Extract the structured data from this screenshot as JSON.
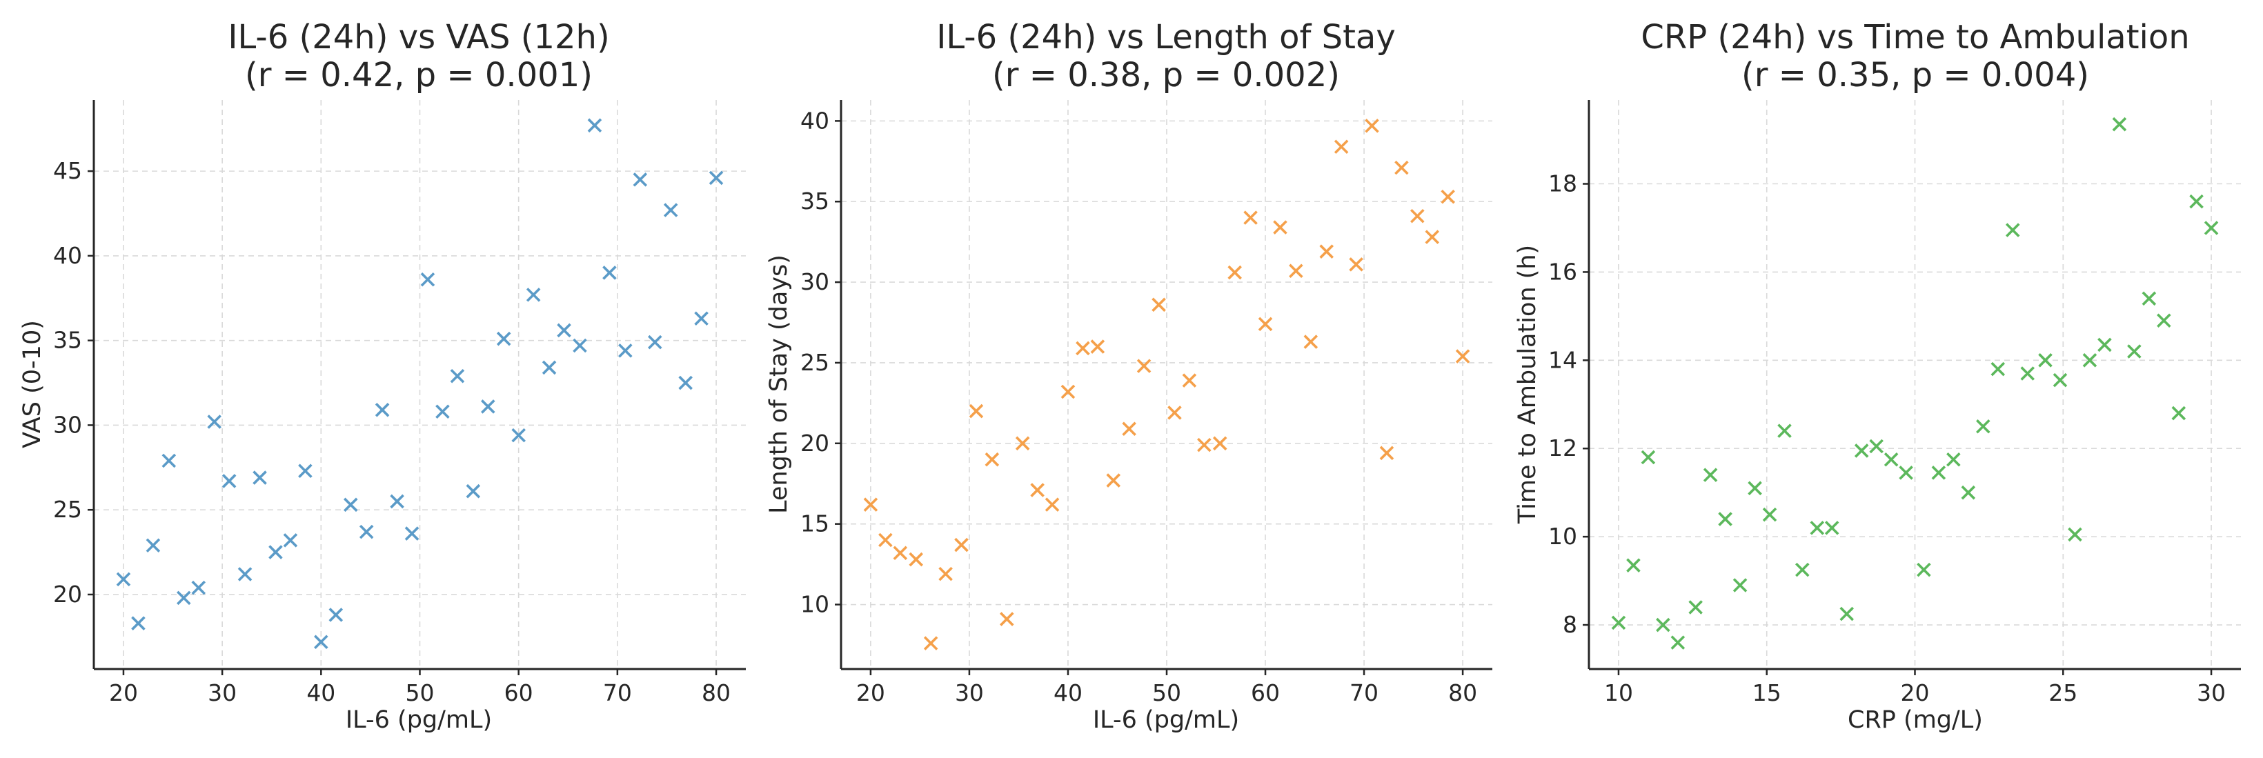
{
  "chart_data": [
    {
      "type": "scatter",
      "title_line1": "IL-6 (24h) vs VAS (12h)",
      "title_line2": "(r = 0.42, p = 0.001)",
      "xlabel": "IL-6 (pg/mL)",
      "ylabel": "VAS (0-10)",
      "xlim": [
        17,
        83
      ],
      "ylim": [
        15.6,
        49.2
      ],
      "xticks": [
        20,
        30,
        40,
        50,
        60,
        70,
        80
      ],
      "yticks": [
        20,
        25,
        30,
        35,
        40,
        45
      ],
      "color": "#5b9bc8",
      "marker": "x",
      "grid": true,
      "points": [
        [
          20.0,
          20.9
        ],
        [
          21.5,
          18.3
        ],
        [
          23.0,
          22.9
        ],
        [
          24.6,
          27.9
        ],
        [
          26.1,
          19.8
        ],
        [
          27.6,
          20.4
        ],
        [
          29.2,
          30.2
        ],
        [
          30.7,
          26.7
        ],
        [
          32.3,
          21.2
        ],
        [
          33.8,
          26.9
        ],
        [
          35.4,
          22.5
        ],
        [
          36.9,
          23.2
        ],
        [
          38.4,
          27.3
        ],
        [
          40.0,
          17.2
        ],
        [
          41.5,
          18.8
        ],
        [
          43.0,
          25.3
        ],
        [
          44.6,
          23.7
        ],
        [
          46.2,
          30.9
        ],
        [
          47.7,
          25.5
        ],
        [
          49.2,
          23.6
        ],
        [
          50.8,
          38.6
        ],
        [
          52.3,
          30.8
        ],
        [
          53.8,
          32.9
        ],
        [
          55.4,
          26.1
        ],
        [
          56.9,
          31.1
        ],
        [
          58.5,
          35.1
        ],
        [
          60.0,
          29.4
        ],
        [
          61.5,
          37.7
        ],
        [
          63.1,
          33.4
        ],
        [
          64.6,
          35.6
        ],
        [
          66.2,
          34.7
        ],
        [
          67.7,
          47.7
        ],
        [
          69.2,
          39.0
        ],
        [
          70.8,
          34.4
        ],
        [
          72.3,
          44.5
        ],
        [
          73.8,
          34.9
        ],
        [
          75.4,
          42.7
        ],
        [
          76.9,
          32.5
        ],
        [
          78.5,
          36.3
        ],
        [
          80.0,
          44.6
        ]
      ]
    },
    {
      "type": "scatter",
      "title_line1": "IL-6 (24h) vs Length of Stay",
      "title_line2": "(r = 0.38, p = 0.002)",
      "xlabel": "IL-6 (pg/mL)",
      "ylabel": "Length of Stay (days)",
      "xlim": [
        17,
        83
      ],
      "ylim": [
        6.0,
        41.3
      ],
      "xticks": [
        20,
        30,
        40,
        50,
        60,
        70,
        80
      ],
      "yticks": [
        10,
        15,
        20,
        25,
        30,
        35,
        40
      ],
      "color": "#f5a04a",
      "marker": "x",
      "grid": true,
      "points": [
        [
          20.0,
          16.2
        ],
        [
          21.5,
          14.0
        ],
        [
          23.0,
          13.2
        ],
        [
          24.6,
          12.8
        ],
        [
          26.1,
          7.6
        ],
        [
          27.6,
          11.9
        ],
        [
          29.2,
          13.7
        ],
        [
          30.7,
          22.0
        ],
        [
          32.3,
          19.0
        ],
        [
          33.8,
          9.1
        ],
        [
          35.4,
          20.0
        ],
        [
          36.9,
          17.1
        ],
        [
          38.4,
          16.2
        ],
        [
          40.0,
          23.2
        ],
        [
          41.5,
          25.9
        ],
        [
          43.0,
          26.0
        ],
        [
          44.6,
          17.7
        ],
        [
          46.2,
          20.9
        ],
        [
          47.7,
          24.8
        ],
        [
          49.2,
          28.6
        ],
        [
          50.8,
          21.9
        ],
        [
          52.3,
          23.9
        ],
        [
          53.8,
          19.9
        ],
        [
          55.4,
          20.0
        ],
        [
          56.9,
          30.6
        ],
        [
          58.5,
          34.0
        ],
        [
          60.0,
          27.4
        ],
        [
          61.5,
          33.4
        ],
        [
          63.1,
          30.7
        ],
        [
          64.6,
          26.3
        ],
        [
          66.2,
          31.9
        ],
        [
          67.7,
          38.4
        ],
        [
          69.2,
          31.1
        ],
        [
          70.8,
          39.7
        ],
        [
          72.3,
          19.4
        ],
        [
          73.8,
          37.1
        ],
        [
          75.4,
          34.1
        ],
        [
          76.9,
          32.8
        ],
        [
          78.5,
          35.3
        ],
        [
          80.0,
          25.4
        ]
      ]
    },
    {
      "type": "scatter",
      "title_line1": "CRP (24h) vs Time to Ambulation",
      "title_line2": "(r = 0.35, p = 0.004)",
      "xlabel": "CRP (mg/L)",
      "ylabel": "Time to Ambulation (h)",
      "xlim": [
        9.0,
        31.0
      ],
      "ylim": [
        7.0,
        19.9
      ],
      "xticks": [
        10,
        15,
        20,
        25,
        30
      ],
      "yticks": [
        8,
        10,
        12,
        14,
        16,
        18
      ],
      "color": "#5cb85c",
      "marker": "x",
      "grid": true,
      "points": [
        [
          10.0,
          8.05
        ],
        [
          10.5,
          9.35
        ],
        [
          11.0,
          11.8
        ],
        [
          11.5,
          8.0
        ],
        [
          12.0,
          7.6
        ],
        [
          12.6,
          8.4
        ],
        [
          13.1,
          11.4
        ],
        [
          13.6,
          10.4
        ],
        [
          14.1,
          8.9
        ],
        [
          14.6,
          11.1
        ],
        [
          15.1,
          10.5
        ],
        [
          15.6,
          12.4
        ],
        [
          16.2,
          9.25
        ],
        [
          16.7,
          10.2
        ],
        [
          17.2,
          10.2
        ],
        [
          17.7,
          8.25
        ],
        [
          18.2,
          11.95
        ],
        [
          18.7,
          12.05
        ],
        [
          19.2,
          11.75
        ],
        [
          19.7,
          11.45
        ],
        [
          20.3,
          9.25
        ],
        [
          20.8,
          11.45
        ],
        [
          21.3,
          11.75
        ],
        [
          21.8,
          11.0
        ],
        [
          22.3,
          12.5
        ],
        [
          22.8,
          13.8
        ],
        [
          23.3,
          16.95
        ],
        [
          23.8,
          13.7
        ],
        [
          24.4,
          14.0
        ],
        [
          24.9,
          13.55
        ],
        [
          25.4,
          10.05
        ],
        [
          25.9,
          14.0
        ],
        [
          26.4,
          14.35
        ],
        [
          26.9,
          19.35
        ],
        [
          27.4,
          14.2
        ],
        [
          27.9,
          15.4
        ],
        [
          28.4,
          14.9
        ],
        [
          28.9,
          12.8
        ],
        [
          29.5,
          17.6
        ],
        [
          30.0,
          17.0
        ]
      ]
    }
  ]
}
